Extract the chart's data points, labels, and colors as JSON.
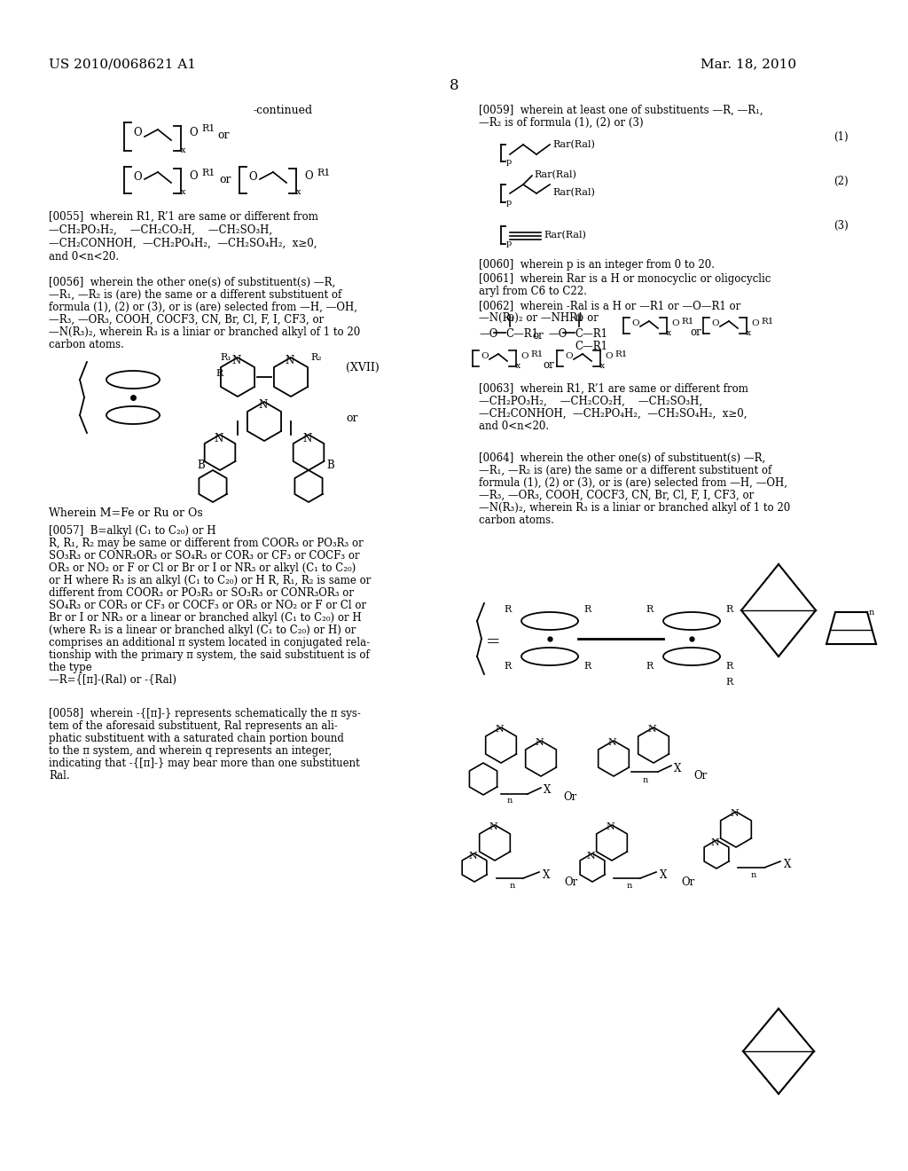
{
  "patent_number": "US 2010/0068621 A1",
  "date": "Mar. 18, 2010",
  "page_number": "8",
  "background_color": "#ffffff",
  "text_color": "#000000",
  "paragraph_0055": "[0055]  wherein R1, R’1 are same or different from\n—CH₂PO₃H₂,    —CH₂CO₂H,    —CH₂SO₃H,\n—CH₂CONHOH,  —CH₂PO₄H₂,  —CH₂SO₄H₂,  x≥0,\nand 0<n<20.",
  "paragraph_0056": "[0056]  wherein the other one(s) of substituent(s) —R,\n—R₁, —R₂ is (are) the same or a different substituent of\nformula (1), (2) or (3), or is (are) selected from —H, —OH,\n—R₃, —OR₃, COOH, COCF3, CN, Br, Cl, F, I, CF3, or\n—N(R₃)₂, wherein R₃ is a liniar or branched alkyl of 1 to 20\ncarbon atoms.",
  "formula_XVII_label": "(XVII)",
  "paragraph_MFe": "Wherein M=Fe or Ru or Os",
  "paragraph_0057": "[0057]  B=alkyl (C₁ to C₂₀) or H\nR, R₁, R₂ may be same or different from COOR₃ or PO₃R₃ or\nSO₃R₃ or CONR₃OR₃ or SO₄R₃ or COR₃ or CF₃ or COCF₃ or\nOR₃ or NO₂ or F or Cl or Br or I or NR₃ or alkyl (C₁ to C₂₀)\nor H where R₃ is an alkyl (C₁ to C₂₀) or H R, R₁, R₂ is same or\ndifferent from COOR₃ or PO₃R₃ or SO₃R₃ or CONR₃OR₃ or\nSO₄R₃ or COR₃ or CF₃ or COCF₃ or OR₃ or NO₂ or F or Cl or\nBr or I or NR₃ or a linear or branched alkyl (C₁ to C₂₀) or H\n(where R₃ is a linear or branched alkyl (C₁ to C₂₀) or H) or\ncomprises an additional π system located in conjugated rela-\ntionship with the primary π system, the said substituent is of\nthe type\n—R={[π]-(Ral) or -{Ral)",
  "paragraph_0058": "[0058]  wherein -{[π]-} represents schematically the π sys-\ntem of the aforesaid substituent, Ral represents an ali-\nphatic substituent with a saturated chain portion bound\nto the π system, and wherein q represents an integer,\nindicating that -{[π]-} may bear more than one substituent\nRal.",
  "paragraph_0059": "[0059]  wherein at least one of substituents —R, —R₁,\n—R₂ is of formula (1), (2) or (3)",
  "paragraph_0060": "[0060]  wherein p is an integer from 0 to 20.",
  "paragraph_0061": "[0061]  wherein Rar is a H or monocyclic or oligocyclic\naryl from C6 to C22.",
  "paragraph_0062": "[0062]  wherein -Ral is a H or —R1 or —O—R1 or\n—N(R₁)₂ or —NHR1 or",
  "paragraph_0063": "[0063]  wherein R1, R’1 are same or different from\n—CH₂PO₃H₂,    —CH₂CO₂H,    —CH₂SO₃H,\n—CH₂CONHOH,  —CH₂PO₄H₂,  —CH₂SO₄H₂,  x≥0,\nand 0<n<20.",
  "paragraph_0064": "[0064]  wherein the other one(s) of substituent(s) —R,\n—R₁, —R₂ is (are) the same or a different substituent of\nformula (1), (2) or (3), or is (are) selected from —H, —OH,\n—R₃, —OR₃, COOH, COCF3, CN, Br, Cl, F, I, CF3, or\n—N(R₃)₂, wherein R₃ is a liniar or branched alkyl of 1 to 20\ncarbon atoms."
}
